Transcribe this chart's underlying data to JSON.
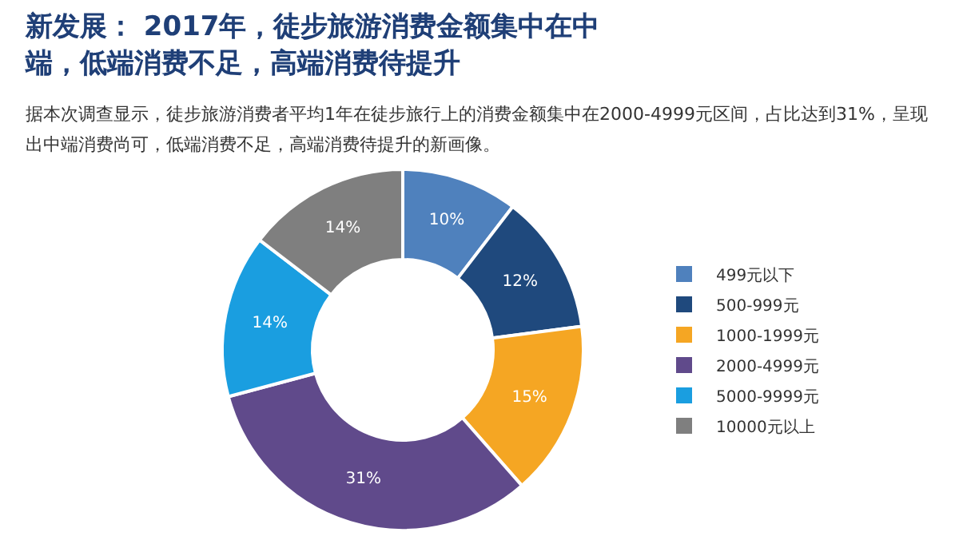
{
  "chart_data": {
    "type": "donut",
    "title": "新发展： 2017年，徒步旅游消费金额集中在中端，低端消费不足，高端消费待提升",
    "subtitle": "据本次调查显示，徒步旅游消费者平均1年在徒步旅行上的消费金额集中在2000-4999元区间，占比达到31%，呈现出中端消费尚可，低端消费不足，高端消费待提升的新画像。",
    "categories": [
      "499元以下",
      "500-999元",
      "1000-1999元",
      "2000-4999元",
      "5000-9999元",
      "10000元以上"
    ],
    "values": [
      10,
      12,
      15,
      31,
      14,
      14
    ],
    "value_labels": [
      "10%",
      "12%",
      "15%",
      "31%",
      "14%",
      "14%"
    ],
    "colors": [
      "#4f81bd",
      "#1f497d",
      "#f5a623",
      "#604a8b",
      "#1a9ee0",
      "#7f7f7f"
    ],
    "legend": "right"
  }
}
